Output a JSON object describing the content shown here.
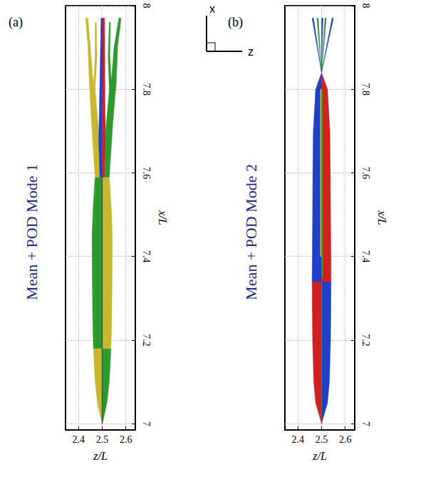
{
  "chart_data": [
    {
      "type": "polygon",
      "panel_label": "(a)",
      "title": "Mean + POD Mode 1",
      "xlabel": "z/L",
      "ylabel": "x/L",
      "xlim": [
        2.345,
        2.64
      ],
      "ylim": [
        6.985,
        8.0
      ],
      "xticks": [
        2.4,
        2.5,
        2.6
      ],
      "yticks": [
        7,
        7.2,
        7.4,
        7.6,
        7.8,
        8
      ],
      "grid": true,
      "series": [
        {
          "color": "#c8b830",
          "points": [
            [
              2.5,
              7.0
            ],
            [
              2.495,
              7.01
            ],
            [
              2.48,
              7.05
            ],
            [
              2.47,
              7.1
            ],
            [
              2.463,
              7.18
            ],
            [
              2.5,
              7.18
            ]
          ]
        },
        {
          "color": "#2e9a2e",
          "points": [
            [
              2.5,
              7.0
            ],
            [
              2.505,
              7.01
            ],
            [
              2.52,
              7.05
            ],
            [
              2.53,
              7.1
            ],
            [
              2.537,
              7.18
            ],
            [
              2.5,
              7.18
            ]
          ]
        },
        {
          "color": "#2e9a2e",
          "points": [
            [
              2.5,
              7.18
            ],
            [
              2.463,
              7.18
            ],
            [
              2.46,
              7.25
            ],
            [
              2.458,
              7.35
            ],
            [
              2.457,
              7.45
            ],
            [
              2.462,
              7.52
            ],
            [
              2.47,
              7.59
            ],
            [
              2.5,
              7.59
            ]
          ]
        },
        {
          "color": "#c8b830",
          "points": [
            [
              2.5,
              7.18
            ],
            [
              2.537,
              7.18
            ],
            [
              2.54,
              7.25
            ],
            [
              2.542,
              7.35
            ],
            [
              2.543,
              7.45
            ],
            [
              2.538,
              7.52
            ],
            [
              2.53,
              7.59
            ],
            [
              2.5,
              7.59
            ]
          ]
        },
        {
          "color": "#2040c8",
          "points": [
            [
              2.499,
              7.0
            ],
            [
              2.501,
              7.0
            ],
            [
              2.501,
              7.59
            ],
            [
              2.499,
              7.59
            ]
          ]
        },
        {
          "color": "#c8b830",
          "points": [
            [
              2.47,
              7.59
            ],
            [
              2.49,
              7.59
            ],
            [
              2.485,
              7.7
            ],
            [
              2.47,
              7.8
            ],
            [
              2.46,
              7.83
            ],
            [
              2.45,
              7.9
            ],
            [
              2.44,
              7.97
            ],
            [
              2.43,
              7.97
            ],
            [
              2.44,
              7.9
            ],
            [
              2.445,
              7.82
            ],
            [
              2.455,
              7.72
            ]
          ]
        },
        {
          "color": "#c8b830",
          "points": [
            [
              2.47,
              7.8
            ],
            [
              2.478,
              7.88
            ],
            [
              2.475,
              7.96
            ],
            [
              2.47,
              7.96
            ],
            [
              2.47,
              7.88
            ],
            [
              2.465,
              7.82
            ]
          ]
        },
        {
          "color": "#2040c8",
          "points": [
            [
              2.49,
              7.59
            ],
            [
              2.5,
              7.59
            ],
            [
              2.5,
              7.75
            ],
            [
              2.505,
              7.97
            ],
            [
              2.495,
              7.97
            ],
            [
              2.488,
              7.75
            ],
            [
              2.485,
              7.68
            ]
          ]
        },
        {
          "color": "#d02020",
          "points": [
            [
              2.5,
              7.59
            ],
            [
              2.51,
              7.59
            ],
            [
              2.515,
              7.68
            ],
            [
              2.512,
              7.75
            ],
            [
              2.51,
              7.97
            ],
            [
              2.502,
              7.97
            ],
            [
              2.5,
              7.75
            ]
          ]
        },
        {
          "color": "#2e9a2e",
          "points": [
            [
              2.51,
              7.59
            ],
            [
              2.53,
              7.59
            ],
            [
              2.545,
              7.72
            ],
            [
              2.56,
              7.82
            ],
            [
              2.565,
              7.9
            ],
            [
              2.58,
              7.97
            ],
            [
              2.57,
              7.97
            ],
            [
              2.55,
              7.9
            ],
            [
              2.54,
              7.83
            ],
            [
              2.53,
              7.8
            ],
            [
              2.515,
              7.7
            ]
          ]
        },
        {
          "color": "#2e9a2e",
          "points": [
            [
              2.53,
              7.8
            ],
            [
              2.525,
              7.88
            ],
            [
              2.53,
              7.96
            ],
            [
              2.535,
              7.96
            ],
            [
              2.532,
              7.88
            ],
            [
              2.538,
              7.82
            ]
          ]
        }
      ]
    },
    {
      "type": "polygon",
      "panel_label": "(b)",
      "title": "Mean + POD Mode 2",
      "xlabel": "z/L",
      "ylabel": "x/L",
      "xlim": [
        2.345,
        2.64
      ],
      "ylim": [
        6.985,
        8.0
      ],
      "xticks": [
        2.4,
        2.5,
        2.6
      ],
      "yticks": [
        7,
        7.2,
        7.4,
        7.6,
        7.8,
        8
      ],
      "grid": true,
      "series": [
        {
          "color": "#d02020",
          "points": [
            [
              2.5,
              7.0
            ],
            [
              2.495,
              7.01
            ],
            [
              2.475,
              7.05
            ],
            [
              2.467,
              7.1
            ],
            [
              2.462,
              7.2
            ],
            [
              2.46,
              7.34
            ],
            [
              2.5,
              7.34
            ]
          ]
        },
        {
          "color": "#2040c8",
          "points": [
            [
              2.5,
              7.0
            ],
            [
              2.505,
              7.01
            ],
            [
              2.525,
              7.05
            ],
            [
              2.533,
              7.1
            ],
            [
              2.538,
              7.2
            ],
            [
              2.54,
              7.34
            ],
            [
              2.5,
              7.34
            ]
          ]
        },
        {
          "color": "#2040c8",
          "points": [
            [
              2.5,
              7.34
            ],
            [
              2.46,
              7.34
            ],
            [
              2.462,
              7.5
            ],
            [
              2.463,
              7.6
            ],
            [
              2.465,
              7.7
            ],
            [
              2.475,
              7.8
            ],
            [
              2.5,
              7.84
            ]
          ]
        },
        {
          "color": "#d02020",
          "points": [
            [
              2.5,
              7.34
            ],
            [
              2.54,
              7.34
            ],
            [
              2.538,
              7.5
            ],
            [
              2.537,
              7.6
            ],
            [
              2.535,
              7.7
            ],
            [
              2.525,
              7.8
            ],
            [
              2.5,
              7.84
            ]
          ]
        },
        {
          "color": "#2e9a2e",
          "points": [
            [
              2.499,
              7.0
            ],
            [
              2.501,
              7.0
            ],
            [
              2.501,
              7.34
            ],
            [
              2.499,
              7.34
            ]
          ]
        },
        {
          "color": "#c8b830",
          "points": [
            [
              2.495,
              7.4
            ],
            [
              2.5,
              7.4
            ],
            [
              2.5,
              7.8
            ],
            [
              2.495,
              7.8
            ]
          ]
        },
        {
          "color": "#2e9a2e",
          "points": [
            [
              2.5,
              7.35
            ],
            [
              2.506,
              7.35
            ],
            [
              2.504,
              7.8
            ],
            [
              2.5,
              7.8
            ]
          ]
        },
        {
          "color": "#2040c8",
          "points": [
            [
              2.5,
              7.84
            ],
            [
              2.46,
              7.97
            ],
            [
              2.466,
              7.97
            ]
          ]
        },
        {
          "color": "#2040c8",
          "points": [
            [
              2.5,
              7.84
            ],
            [
              2.55,
              7.97
            ],
            [
              2.544,
              7.97
            ]
          ]
        },
        {
          "color": "#2e9a2e",
          "points": [
            [
              2.5,
              7.84
            ],
            [
              2.52,
              7.97
            ],
            [
              2.514,
              7.97
            ]
          ]
        },
        {
          "color": "#2e9a2e",
          "points": [
            [
              2.5,
              7.84
            ],
            [
              2.486,
              7.97
            ],
            [
              2.48,
              7.97
            ]
          ]
        },
        {
          "color": "#2040c8",
          "points": [
            [
              2.5,
              7.84
            ],
            [
              2.506,
              7.97
            ],
            [
              2.5,
              7.97
            ]
          ]
        }
      ]
    }
  ],
  "triad": {
    "up": "x",
    "right": "z"
  }
}
